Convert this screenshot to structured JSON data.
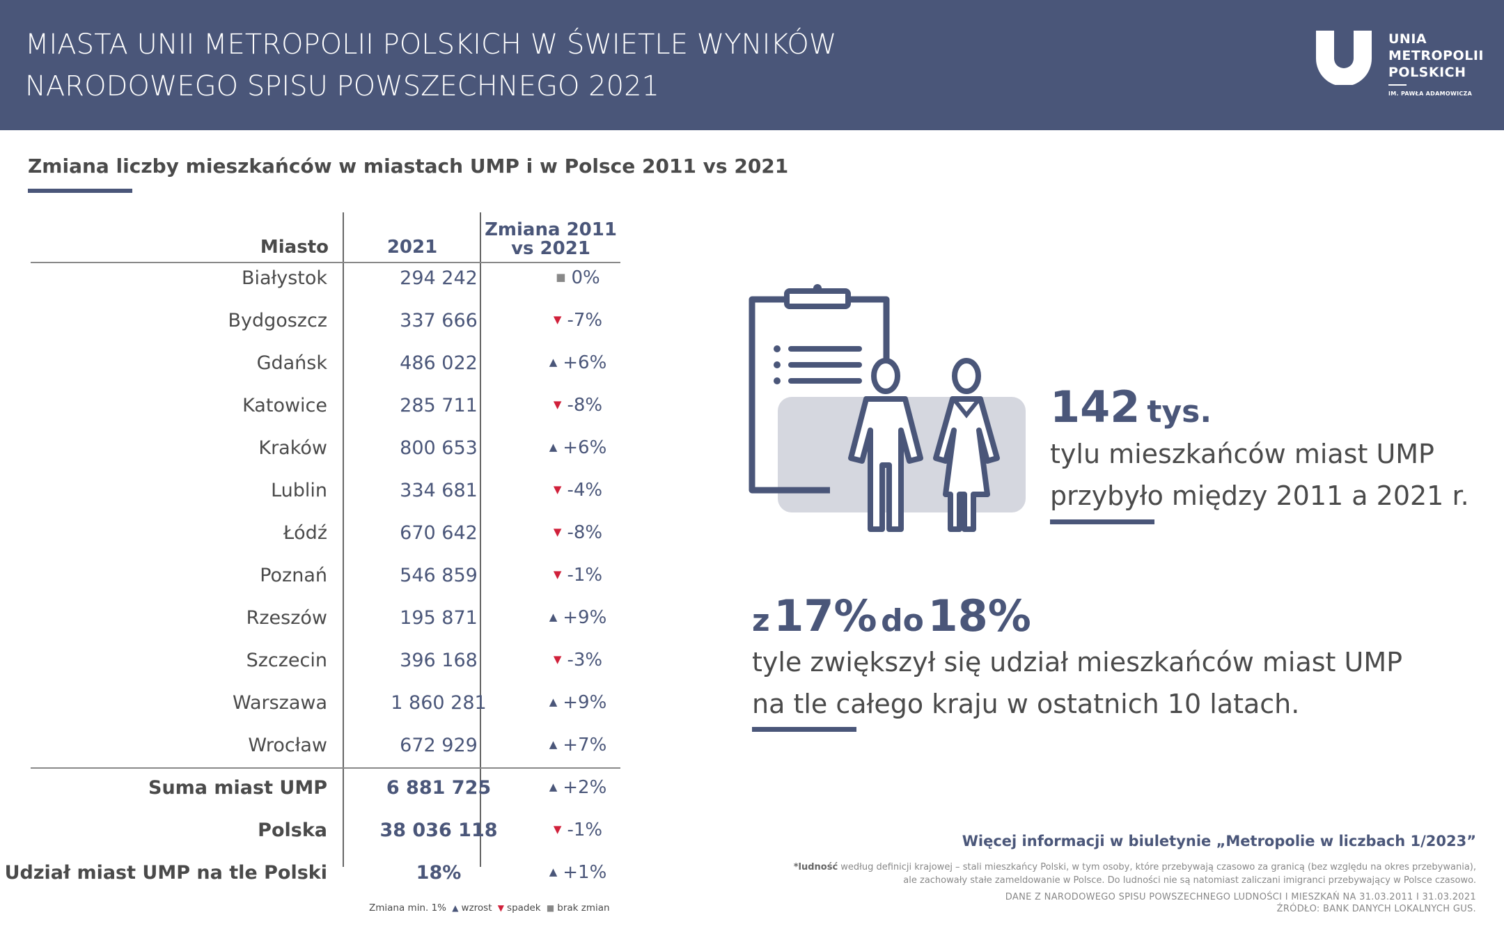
{
  "header": {
    "title_line1": "MIASTA UNII METROPOLII POLSKICH W ŚWIETLE WYNIKÓW",
    "title_line2": "NARODOWEGO SPISU POWSZECHNEGO 2021",
    "logo": {
      "line1": "UNIA",
      "line2": "METROPOLII",
      "line3": "POLSKICH",
      "sub": "IM. PAWŁA ADAMOWICZA"
    }
  },
  "section": {
    "title": "Zmiana liczby mieszkańców w miastach UMP i w Polsce 2011 vs 2021"
  },
  "table": {
    "headers": {
      "city": "Miasto",
      "pop": "2021",
      "change_line1": "Zmiana 2011",
      "change_line2": "vs 2021"
    },
    "rows": [
      {
        "city": "Białystok",
        "pop": "294 242",
        "change": "0%",
        "dir": "none"
      },
      {
        "city": "Bydgoszcz",
        "pop": "337 666",
        "change": "-7%",
        "dir": "down"
      },
      {
        "city": "Gdańsk",
        "pop": "486 022",
        "change": "+6%",
        "dir": "up"
      },
      {
        "city": "Katowice",
        "pop": "285 711",
        "change": "-8%",
        "dir": "down"
      },
      {
        "city": "Kraków",
        "pop": "800 653",
        "change": "+6%",
        "dir": "up"
      },
      {
        "city": "Lublin",
        "pop": "334 681",
        "change": "-4%",
        "dir": "down"
      },
      {
        "city": "Łódź",
        "pop": "670 642",
        "change": "-8%",
        "dir": "down"
      },
      {
        "city": "Poznań",
        "pop": "546 859",
        "change": "-1%",
        "dir": "down"
      },
      {
        "city": "Rzeszów",
        "pop": "195 871",
        "change": "+9%",
        "dir": "up"
      },
      {
        "city": "Szczecin",
        "pop": "396 168",
        "change": "-3%",
        "dir": "down"
      },
      {
        "city": "Warszawa",
        "pop": "1 860 281",
        "change": "+9%",
        "dir": "up"
      },
      {
        "city": "Wrocław",
        "pop": "672 929",
        "change": "+7%",
        "dir": "up"
      }
    ],
    "totals": [
      {
        "city": "Suma miast UMP",
        "pop": "6 881 725",
        "change": "+2%",
        "dir": "up"
      },
      {
        "city": "Polska",
        "pop": "38 036 118",
        "change": "-1%",
        "dir": "down"
      },
      {
        "city": "Udział miast UMP na tle Polski",
        "pop": "18%",
        "change": "+1%",
        "dir": "up"
      }
    ],
    "legend": {
      "prefix": "Zmiana min. 1%",
      "up": "wzrost",
      "down": "spadek",
      "none": "brak zmian"
    }
  },
  "stats": {
    "stat1": {
      "number": "142",
      "unit": "tys.",
      "line1": "tylu mieszkańców miast UMP",
      "line2": "przybyło między 2011 a 2021 r."
    },
    "stat2": {
      "from_word": "z",
      "from_value": "17%",
      "to_word": "do",
      "to_value": "18%",
      "line1": "tyle zwiększył się udział mieszkańców miast UMP",
      "line2": "na tle całego kraju w ostatnich 10 latach."
    }
  },
  "footer": {
    "more_info": "Więcej informacji w biuletynie „Metropolie w liczbach 1/2023”",
    "footnote_bold": "*ludność",
    "footnote_line1": " według definicji krajowej – stali mieszkańcy Polski, w tym osoby, które przebywają czasowo za granicą (bez względu na okres przebywania),",
    "footnote_line2": "ale zachowały stałe zameldowanie w Polsce. Do ludności nie są natomiast zaliczani imigranci przebywający w Polsce czasowo.",
    "source_line1": "DANE Z NARODOWEGO SPISU POWSZECHNEGO LUDNOŚCI I MIESZKAŃ NA 31.03.2011 I 31.03.2021",
    "source_line2": "ŹRÓDŁO: BANK DANYCH LOKALNYCH GUS."
  },
  "colors": {
    "brand": "#4a5679",
    "decrease": "#d0203a",
    "neutral": "#888888",
    "illustration_bg": "#d5d7df"
  }
}
